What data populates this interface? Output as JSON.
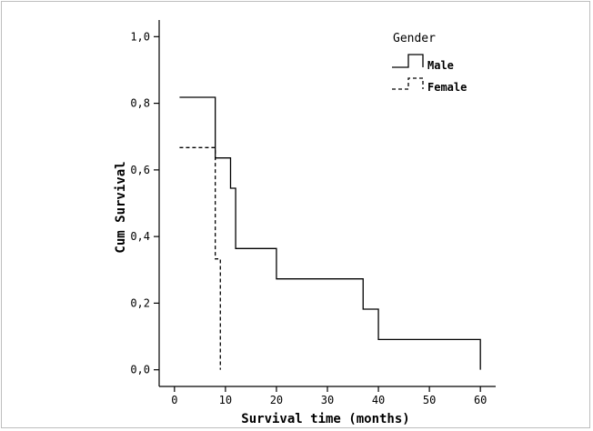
{
  "chart_data": {
    "type": "line",
    "subtype": "step",
    "title": "",
    "xlabel": "Survival time (months)",
    "ylabel": "Cum Survival",
    "xlim": [
      -3,
      63
    ],
    "ylim": [
      -0.05,
      1.05
    ],
    "x_ticks": [
      0,
      10,
      20,
      30,
      40,
      50,
      60
    ],
    "x_tick_labels": [
      "0",
      "10",
      "20",
      "30",
      "40",
      "50",
      "60"
    ],
    "y_ticks": [
      0.0,
      0.2,
      0.4,
      0.6,
      0.8,
      1.0
    ],
    "y_tick_labels": [
      "0,0",
      "0,2",
      "0,4",
      "0,6",
      "0,8",
      "1,0"
    ],
    "grid": false,
    "legend": {
      "title": "Gender",
      "placement": "top-right",
      "entries": [
        "Male",
        "Female"
      ]
    },
    "series": [
      {
        "name": "Male",
        "style": "solid",
        "color": "#000000",
        "steps": [
          [
            1,
            0.818
          ],
          [
            8,
            0.636
          ],
          [
            11,
            0.545
          ],
          [
            12,
            0.364
          ],
          [
            20,
            0.273
          ],
          [
            37,
            0.182
          ],
          [
            40,
            0.091
          ],
          [
            60,
            0.0
          ]
        ]
      },
      {
        "name": "Female",
        "style": "dashed",
        "color": "#000000",
        "steps": [
          [
            1,
            0.667
          ],
          [
            8,
            0.333
          ],
          [
            9,
            0.0
          ]
        ]
      }
    ]
  }
}
